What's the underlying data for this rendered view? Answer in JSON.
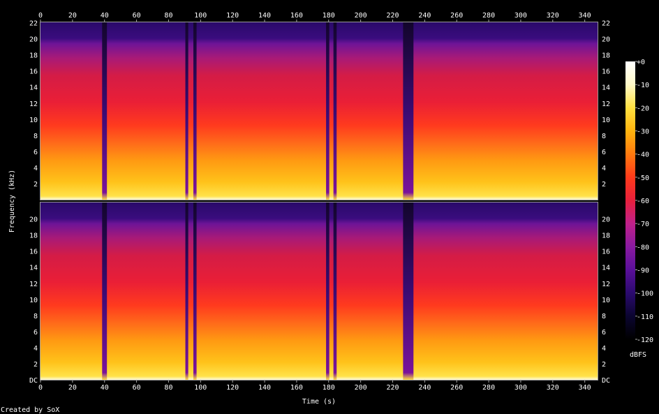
{
  "chart_data": {
    "type": "heatmap",
    "title": "",
    "xlabel": "Time (s)",
    "ylabel": "Frequency (kHz)",
    "colorbar_label": "dBFS",
    "credit": "Created by SoX",
    "x_ticks": [
      0,
      20,
      40,
      60,
      80,
      100,
      120,
      140,
      160,
      180,
      200,
      220,
      240,
      260,
      280,
      300,
      320,
      340
    ],
    "xlim": [
      0,
      348
    ],
    "ylim_khz": [
      0,
      22.05
    ],
    "y_ticks_upper": [
      "2",
      "4",
      "6",
      "8",
      "10",
      "12",
      "14",
      "16",
      "18",
      "20",
      "22"
    ],
    "y_ticks_lower": [
      "DC",
      "2",
      "4",
      "6",
      "8",
      "10",
      "12",
      "14",
      "16",
      "18",
      "20"
    ],
    "colorbar_ticks": [
      "+0",
      "-10",
      "-20",
      "-30",
      "-40",
      "-50",
      "-60",
      "-70",
      "-80",
      "-90",
      "-100",
      "-110",
      "-120"
    ],
    "color_range_dbfs": [
      -120,
      0
    ],
    "channels": 2,
    "colors": {
      "background": "#000000",
      "text": "#ffffff",
      "frame": "#9a9a9a"
    },
    "colormap": [
      "#000000",
      "#0b0530",
      "#2b0a6e",
      "#5a0f9a",
      "#8a1aa0",
      "#c0208a",
      "#e8203c",
      "#ff3a1a",
      "#ff7a0e",
      "#ffb40e",
      "#ffe040",
      "#fff9c8",
      "#ffffff"
    ],
    "silent_gaps_s": [
      [
        38.5,
        41.5
      ],
      [
        90.5,
        92.3
      ],
      [
        95.5,
        97.5
      ],
      [
        178.4,
        180.4
      ],
      [
        183.0,
        185.0
      ],
      [
        226.5,
        233.0
      ]
    ]
  }
}
